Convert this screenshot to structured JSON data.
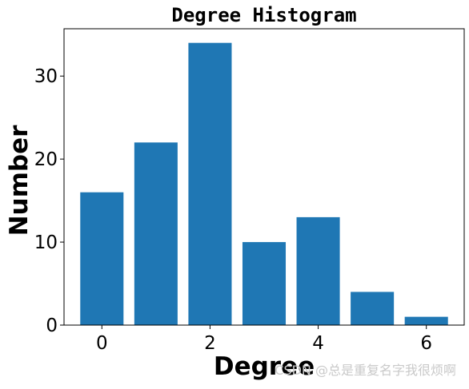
{
  "chart_data": {
    "type": "bar",
    "title": "Degree Histogram",
    "xlabel": "Degree",
    "ylabel": "Number",
    "x": [
      0,
      1,
      2,
      3,
      4,
      5,
      6
    ],
    "values": [
      16,
      22,
      34,
      10,
      13,
      4,
      1
    ],
    "xlim": [
      -0.7,
      6.7
    ],
    "ylim": [
      0,
      35.7
    ],
    "xticks": [
      0,
      2,
      4,
      6
    ],
    "yticks": [
      0,
      10,
      20,
      30
    ],
    "bar_color": "#1f77b4",
    "grid": false,
    "legend": "none"
  },
  "watermark": {
    "text": "CSDN @总是重复名字我很烦啊"
  }
}
